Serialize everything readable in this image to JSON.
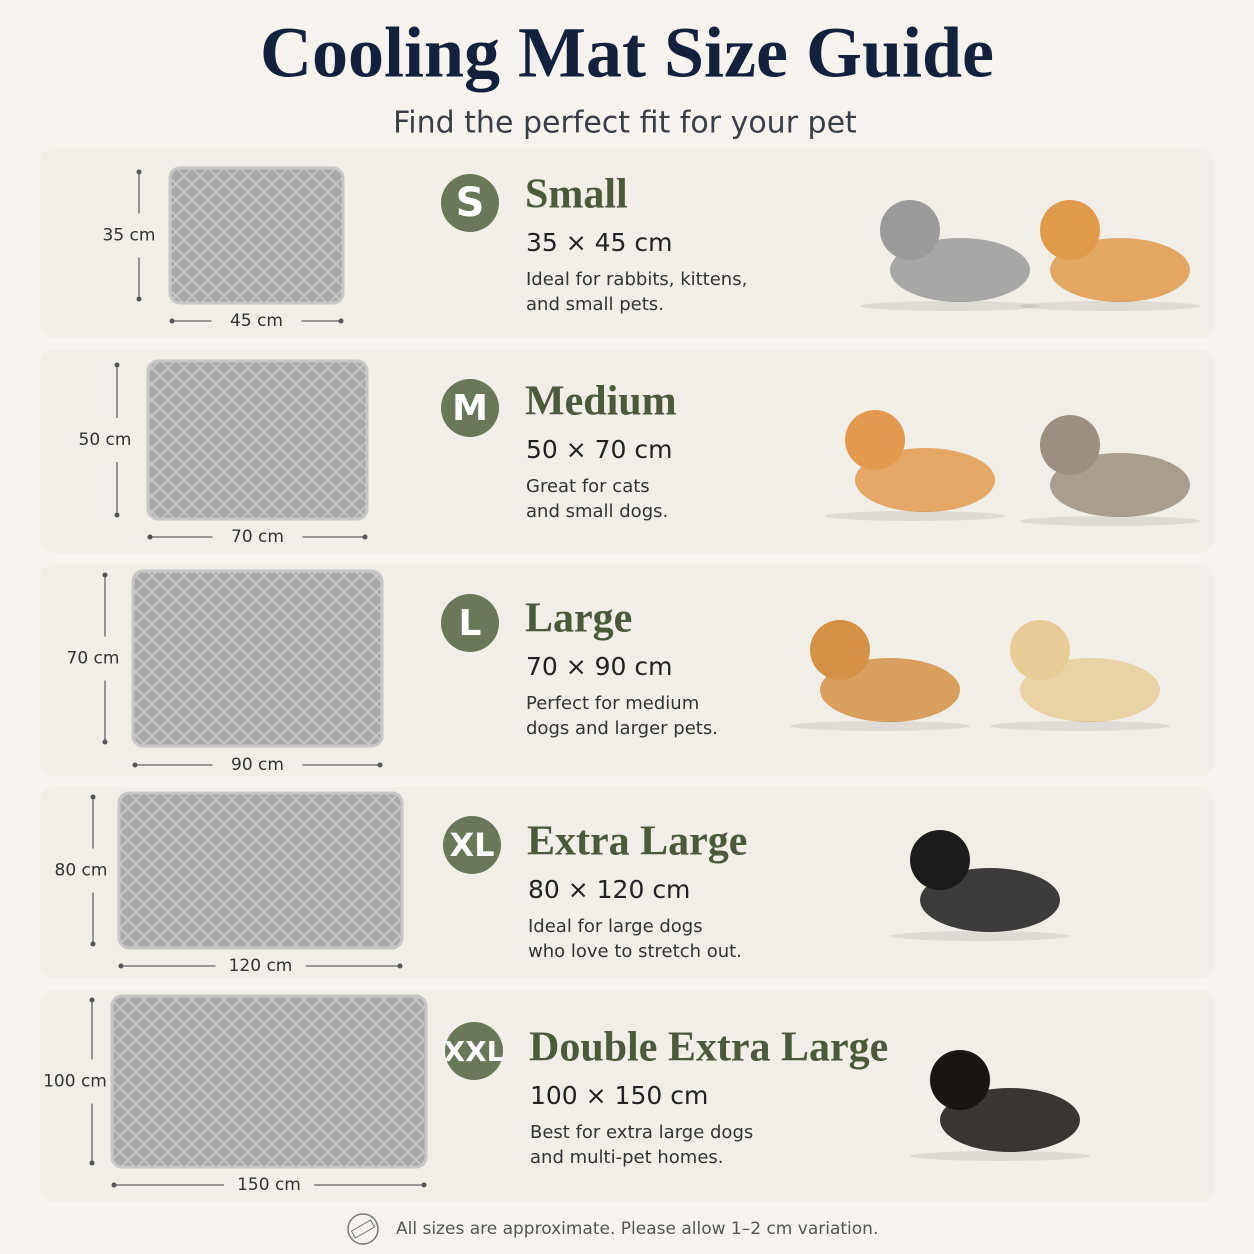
{
  "header": {
    "title": "Cooling Mat Size Guide",
    "subtitle": "Find the perfect fit for your pet"
  },
  "sizes": [
    {
      "badge": "S",
      "name": "Small",
      "dimensions": "35 × 45 cm",
      "description": [
        "Ideal for rabbits, kittens,",
        "and small pets."
      ],
      "height_label": "35 cm",
      "width_label": "45 cm"
    },
    {
      "badge": "M",
      "name": "Medium",
      "dimensions": "50 × 70 cm",
      "description": [
        "Great for cats",
        "and small dogs."
      ],
      "height_label": "50 cm",
      "width_label": "70 cm"
    },
    {
      "badge": "L",
      "name": "Large",
      "dimensions": "70 × 90 cm",
      "description": [
        "Perfect for medium",
        "dogs and larger pets."
      ],
      "height_label": "70 cm",
      "width_label": "90 cm"
    },
    {
      "badge": "XL",
      "name": "Extra Large",
      "dimensions": "80 × 120 cm",
      "description": [
        "Ideal for large dogs",
        "who love to stretch out."
      ],
      "height_label": "80 cm",
      "width_label": "120 cm"
    },
    {
      "badge": "XXL",
      "name": "Double Extra Large",
      "dimensions": "100 × 150 cm",
      "description": [
        "Best for extra large dogs",
        "and multi-pet homes."
      ],
      "height_label": "100 cm",
      "width_label": "150 cm"
    }
  ],
  "footer": {
    "note": "All sizes are approximate. Please allow 1–2 cm variation."
  }
}
